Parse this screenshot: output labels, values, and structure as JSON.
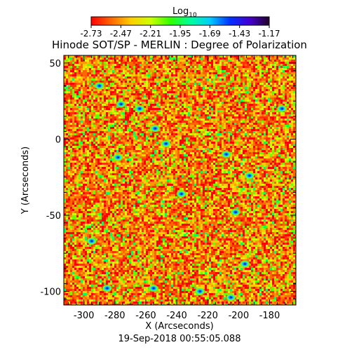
{
  "chart_data": {
    "type": "heatmap",
    "title": "Hinode SOT/SP - MERLIN : Degree of Polarization",
    "colorbar": {
      "label_base": "Log",
      "label_sub": "10",
      "range": [
        -2.73,
        -1.17
      ],
      "ticks": [
        "-2.73",
        "-2.47",
        "-2.21",
        "-1.95",
        "-1.69",
        "-1.43",
        "-1.17"
      ],
      "colors": [
        "#ff0000",
        "#ff6600",
        "#ffcc00",
        "#ccff00",
        "#33ff00",
        "#00ff99",
        "#00ccff",
        "#0033ff",
        "#4400cc",
        "#22002a"
      ]
    },
    "x_axis": {
      "label": "X (Arcseconds)",
      "range": [
        -313,
        -163
      ],
      "ticks": [
        -300,
        -280,
        -260,
        -240,
        -220,
        -200,
        -180
      ],
      "tick_labels": [
        "-300",
        "-280",
        "-260",
        "-240",
        "-220",
        "-200",
        "-180"
      ]
    },
    "y_axis": {
      "label": "Y (Arcseconds)",
      "range": [
        -109,
        55
      ],
      "ticks": [
        50,
        0,
        -50,
        -100
      ],
      "tick_labels": [
        "50",
        "0",
        "-50",
        "-100"
      ]
    },
    "timestamp": "19-Sep-2018 00:55:05.088",
    "map_palette": {
      "dominant": [
        "#ff0000",
        "#ff3300",
        "#ff6600",
        "#ff9900",
        "#ffcc00"
      ],
      "features": [
        "#ccff00",
        "#66ff00",
        "#00ff66",
        "#00ccff",
        "#0044ff",
        "#1a0066",
        "#000000"
      ]
    },
    "dark_patches": [
      {
        "x": -290,
        "y": 35
      },
      {
        "x": -264,
        "y": 20
      },
      {
        "x": -278,
        "y": -12
      },
      {
        "x": -208,
        "y": -10
      },
      {
        "x": -254,
        "y": 7
      },
      {
        "x": -247,
        "y": -3
      },
      {
        "x": -193,
        "y": -24
      },
      {
        "x": -202,
        "y": -48
      },
      {
        "x": -237,
        "y": -36
      },
      {
        "x": -295,
        "y": -67
      },
      {
        "x": -276,
        "y": 23
      },
      {
        "x": -196,
        "y": -82
      },
      {
        "x": -225,
        "y": -100
      },
      {
        "x": -285,
        "y": -98
      },
      {
        "x": -255,
        "y": -98
      },
      {
        "x": -172,
        "y": 20
      },
      {
        "x": -205,
        "y": -104
      }
    ]
  }
}
